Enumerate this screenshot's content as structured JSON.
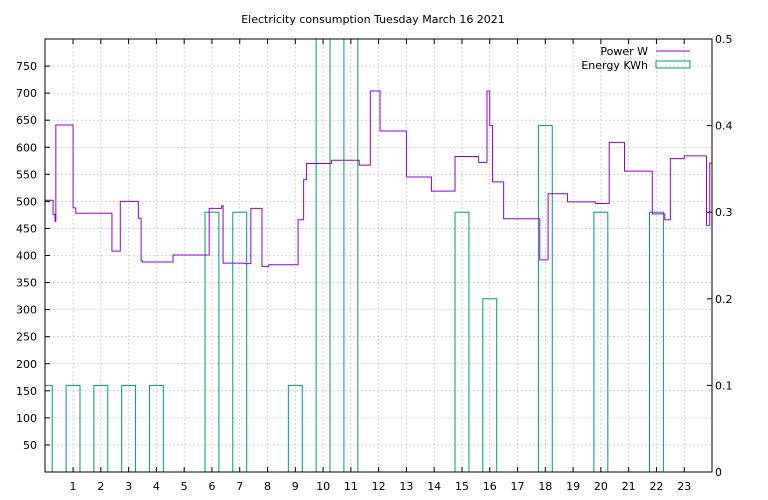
{
  "chart_data": {
    "type": "line",
    "title": "Electricity consumption Tuesday March 16 2021",
    "xlabel": "",
    "ylabel": "",
    "y2label": "",
    "xlim": [
      -0.01,
      24.0
    ],
    "ylim": [
      0,
      800
    ],
    "y2lim": [
      0,
      0.5
    ],
    "x_ticks": [
      1,
      2,
      3,
      4,
      5,
      6,
      7,
      8,
      9,
      10,
      11,
      12,
      13,
      14,
      15,
      16,
      17,
      18,
      19,
      20,
      21,
      22,
      23
    ],
    "y_ticks": [
      50,
      100,
      150,
      200,
      250,
      300,
      350,
      400,
      450,
      500,
      550,
      600,
      650,
      700,
      750
    ],
    "y2_ticks": [
      0,
      0.1,
      0.2,
      0.3,
      0.4,
      0.5
    ],
    "grid": true,
    "legend_position": "top-right",
    "series": [
      {
        "name": "Power W",
        "axis": "left",
        "style": "steps",
        "color": "#9400d3",
        "x": [
          0,
          0.28,
          0.35,
          0.38,
          1.0,
          1.1,
          2.4,
          2.7,
          3.35,
          3.45,
          3.5,
          4.45,
          4.6,
          5.9,
          6.35,
          6.4,
          7.15,
          7.4,
          7.8,
          8.05,
          9.1,
          9.3,
          9.4,
          10.3,
          11.3,
          11.7,
          12.05,
          13.0,
          13.9,
          14.75,
          15.6,
          15.9,
          16.0,
          16.1,
          16.5,
          17.8,
          18.1,
          18.8,
          19.8,
          20.3,
          20.85,
          21.85,
          22.3,
          22.5,
          23.0,
          23.8,
          23.92
        ],
        "values": [
          502,
          476,
          463,
          641,
          488,
          478,
          408,
          500,
          469,
          390,
          388,
          388,
          401,
          487,
          492,
          386,
          385,
          487,
          380,
          383,
          466,
          540,
          570,
          576,
          567,
          704,
          630,
          545,
          519,
          583,
          572,
          704,
          640,
          536,
          468,
          392,
          514,
          499,
          496,
          609,
          556,
          477,
          466,
          579,
          584,
          456,
          571
        ]
      },
      {
        "name": "Energy KWh",
        "axis": "right",
        "style": "boxes",
        "color": "#009e73",
        "x": [
          0,
          1,
          2,
          3,
          4,
          5,
          6,
          7,
          8,
          9,
          10,
          11,
          12,
          13,
          14,
          15,
          16,
          17,
          18,
          19,
          20,
          21,
          22,
          23
        ],
        "values": [
          0.1,
          0.1,
          0.1,
          0.1,
          0.1,
          0,
          0.3,
          0.3,
          0,
          0.1,
          0.5,
          0.5,
          0,
          0,
          0,
          0.3,
          0.2,
          0,
          0.4,
          0,
          0.3,
          0,
          0.3,
          0
        ]
      }
    ]
  }
}
